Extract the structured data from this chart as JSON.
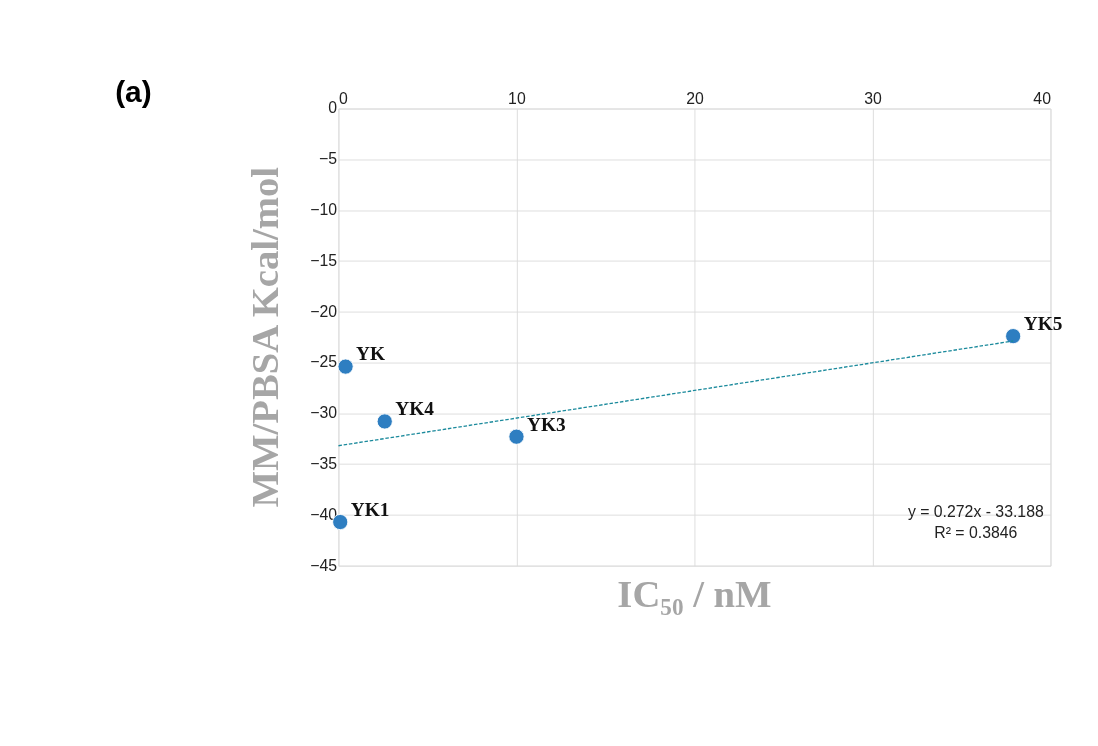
{
  "chart_data": {
    "type": "scatter",
    "title": "(a)",
    "xlabel": "IC₅₀ / nM",
    "ylabel": "MM/PBSA   Kcal/mol",
    "series": [
      {
        "type": "scatter",
        "color": "#2e7ec1",
        "x": [
          0.4,
          2.6,
          10.0,
          37.9,
          0.1
        ],
        "values": [
          -25.4,
          -30.8,
          -32.3,
          -22.4,
          -40.7
        ],
        "marker": "circle"
      },
      {
        "type": "line",
        "color": "#1b8a9c",
        "x": [
          0,
          37.9
        ],
        "values": [
          -33.19,
          -22.88
        ],
        "line_style": "dashed"
      }
    ],
    "annotations": [
      {
        "text": "YK",
        "x": 0.4,
        "y": -25.4
      },
      {
        "text": "YK4",
        "x": 2.6,
        "y": -30.8
      },
      {
        "text": "YK3",
        "x": 10.0,
        "y": -32.3
      },
      {
        "text": "YK5",
        "x": 37.9,
        "y": -22.4
      },
      {
        "text": "YK1",
        "x": 0.1,
        "y": -40.7
      },
      "y = 0.272x - 33.188",
      "R² = 0.3846"
    ],
    "xlim": [
      0,
      40
    ],
    "xticks": [
      0,
      10,
      20,
      30,
      40
    ],
    "ylim": [
      -45,
      0
    ],
    "yticks": [
      0,
      -5,
      -10,
      -15,
      -20,
      -25,
      -30,
      -35,
      -40,
      -45
    ],
    "grid": true
  }
}
